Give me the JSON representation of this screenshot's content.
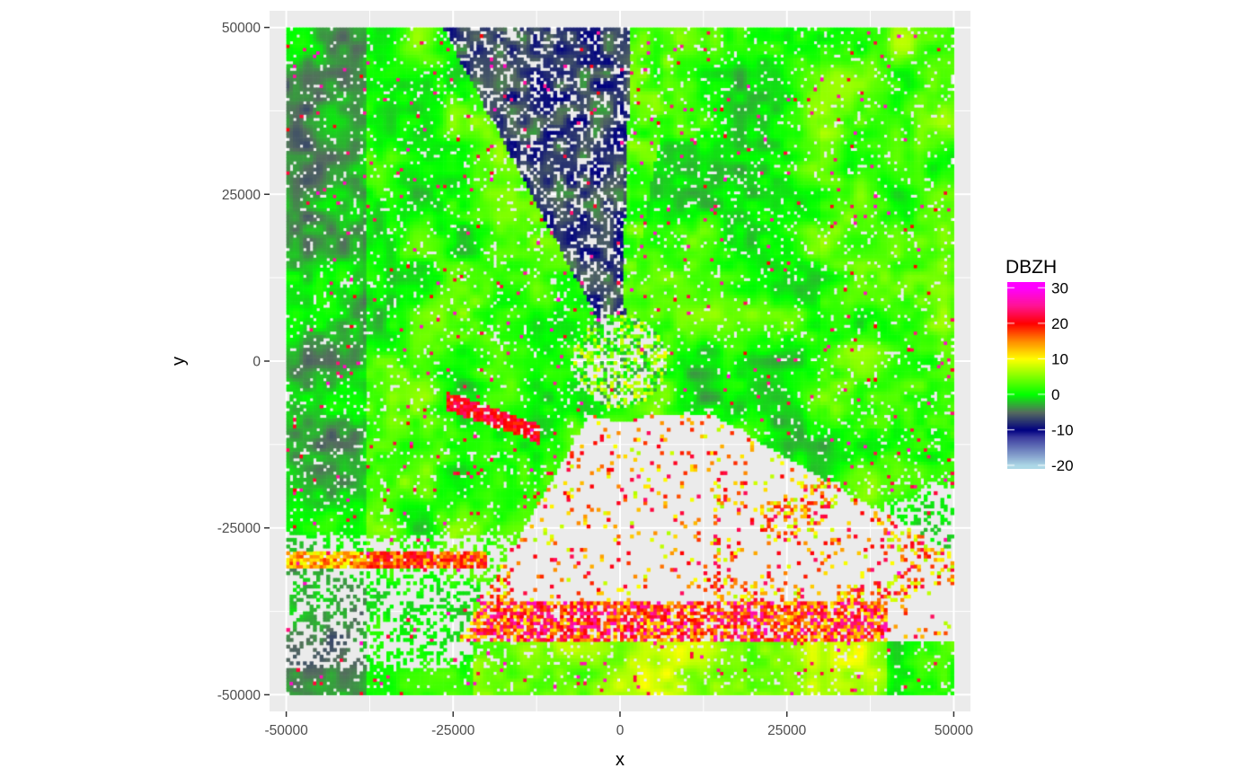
{
  "chart_data": {
    "type": "heatmap",
    "xlabel": "x",
    "ylabel": "y",
    "xlim": [
      -52500,
      52500
    ],
    "ylim": [
      -52500,
      52500
    ],
    "x_ticks": [
      -50000,
      -25000,
      0,
      25000,
      50000
    ],
    "y_ticks": [
      -50000,
      -25000,
      0,
      25000,
      50000
    ],
    "x_tick_labels": [
      "-50000",
      "-25000",
      "0",
      "25000",
      "50000"
    ],
    "y_tick_labels": [
      "-50000",
      "-25000",
      "0",
      "25000",
      "50000"
    ],
    "grid": true,
    "legend": {
      "title": "DBZH",
      "placement": "right",
      "breaks": [
        30,
        20,
        10,
        0,
        -10,
        -20
      ],
      "break_labels": [
        "30",
        "20",
        "10",
        "0",
        "-10",
        "-20"
      ],
      "value_range": [
        -20,
        30
      ],
      "color_stops": [
        {
          "value": -20,
          "color": "#add8e6"
        },
        {
          "value": -12,
          "color": "#3b3b9f"
        },
        {
          "value": -10,
          "color": "#000080"
        },
        {
          "value": -5,
          "color": "#556b5f"
        },
        {
          "value": 0,
          "color": "#00ff00"
        },
        {
          "value": 10,
          "color": "#ffff00"
        },
        {
          "value": 15,
          "color": "#ff8c00"
        },
        {
          "value": 20,
          "color": "#ff0000"
        },
        {
          "value": 25,
          "color": "#ff1493"
        },
        {
          "value": 30,
          "color": "#ff00ff"
        }
      ]
    },
    "data_extent": {
      "x": [
        -50000,
        50000
      ],
      "y": [
        -50000,
        50000
      ]
    },
    "cell_size": 500,
    "colors": {
      "panel": "#ebebeb",
      "grid": "#ffffff",
      "no_data": "#ebebeb"
    }
  }
}
